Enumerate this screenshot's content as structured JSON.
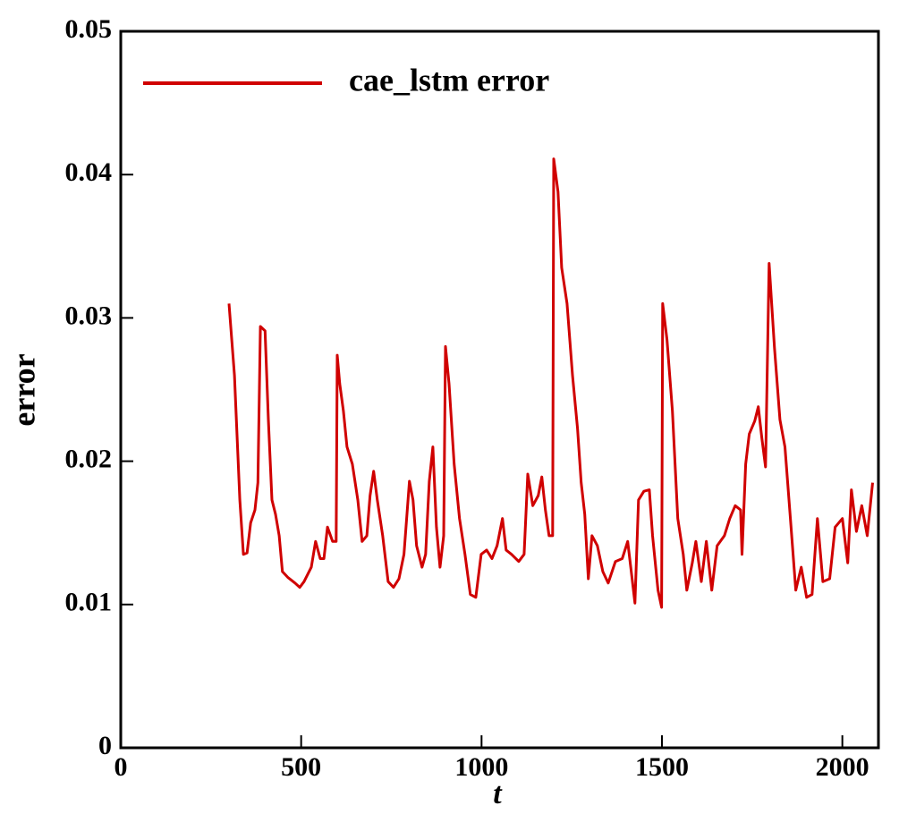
{
  "chart_data": {
    "type": "line",
    "x_label": "t",
    "y_label": "error",
    "xlim": [
      0,
      2100
    ],
    "xticks": [
      0,
      500,
      1000,
      1500,
      2000
    ],
    "ylim": [
      0,
      0.05
    ],
    "yticks": [
      0,
      0.01,
      0.02,
      0.03,
      0.04,
      0.05
    ],
    "legend": "top-left",
    "x": [
      300,
      315,
      330,
      340,
      350,
      360,
      372,
      380,
      387,
      400,
      409,
      419,
      429,
      439,
      448,
      463,
      483,
      496,
      508,
      528,
      540,
      553,
      563,
      573,
      587,
      597,
      600,
      607,
      617,
      627,
      642,
      657,
      669,
      682,
      691,
      701,
      711,
      726,
      741,
      756,
      771,
      785,
      800,
      810,
      820,
      835,
      845,
      855,
      865,
      875,
      885,
      895,
      900,
      910,
      924,
      939,
      954,
      969,
      984,
      999,
      1014,
      1029,
      1043,
      1058,
      1068,
      1083,
      1103,
      1118,
      1128,
      1142,
      1157,
      1167,
      1177,
      1187,
      1197,
      1200,
      1212,
      1222,
      1237,
      1252,
      1266,
      1276,
      1286,
      1296,
      1306,
      1321,
      1336,
      1351,
      1371,
      1390,
      1405,
      1415,
      1425,
      1435,
      1450,
      1465,
      1474,
      1489,
      1499,
      1502,
      1514,
      1529,
      1544,
      1559,
      1569,
      1584,
      1594,
      1609,
      1623,
      1638,
      1653,
      1673,
      1688,
      1703,
      1718,
      1722,
      1732,
      1742,
      1757,
      1767,
      1777,
      1787,
      1797,
      1812,
      1827,
      1841,
      1856,
      1871,
      1886,
      1901,
      1916,
      1931,
      1946,
      1965,
      1980,
      2000,
      2015,
      2025,
      2039,
      2054,
      2069,
      2084
    ],
    "series": [
      {
        "name": "cae_lstm error",
        "color": "#d00000",
        "values": [
          0.031,
          0.026,
          0.0173,
          0.0135,
          0.0136,
          0.0157,
          0.0166,
          0.0185,
          0.0294,
          0.0291,
          0.0229,
          0.0173,
          0.0163,
          0.0148,
          0.0123,
          0.0119,
          0.0115,
          0.0112,
          0.0116,
          0.0126,
          0.0144,
          0.0132,
          0.0132,
          0.0154,
          0.0144,
          0.0144,
          0.0274,
          0.0254,
          0.0235,
          0.021,
          0.0198,
          0.0173,
          0.0144,
          0.0148,
          0.0176,
          0.0193,
          0.0173,
          0.0148,
          0.0116,
          0.0112,
          0.0118,
          0.0135,
          0.0186,
          0.0173,
          0.0141,
          0.0126,
          0.0135,
          0.0186,
          0.021,
          0.0154,
          0.0126,
          0.0148,
          0.028,
          0.0254,
          0.0198,
          0.016,
          0.0135,
          0.0107,
          0.0105,
          0.0135,
          0.0138,
          0.0132,
          0.0141,
          0.016,
          0.0138,
          0.0135,
          0.013,
          0.0135,
          0.0191,
          0.0169,
          0.0176,
          0.0189,
          0.0166,
          0.0148,
          0.0148,
          0.0411,
          0.0388,
          0.0335,
          0.031,
          0.026,
          0.0223,
          0.0185,
          0.0163,
          0.0118,
          0.0148,
          0.0141,
          0.0123,
          0.0115,
          0.013,
          0.0132,
          0.0144,
          0.0123,
          0.0101,
          0.0173,
          0.0179,
          0.018,
          0.0148,
          0.011,
          0.0098,
          0.031,
          0.0285,
          0.0235,
          0.016,
          0.0135,
          0.011,
          0.0129,
          0.0144,
          0.0116,
          0.0144,
          0.011,
          0.0141,
          0.0148,
          0.016,
          0.0169,
          0.0166,
          0.0135,
          0.0198,
          0.0219,
          0.0228,
          0.0238,
          0.0216,
          0.0196,
          0.0338,
          0.0279,
          0.0229,
          0.021,
          0.016,
          0.011,
          0.0126,
          0.0105,
          0.0107,
          0.016,
          0.0116,
          0.0118,
          0.0154,
          0.016,
          0.0129,
          0.018,
          0.0151,
          0.0169,
          0.0148,
          0.0185
        ]
      }
    ]
  }
}
